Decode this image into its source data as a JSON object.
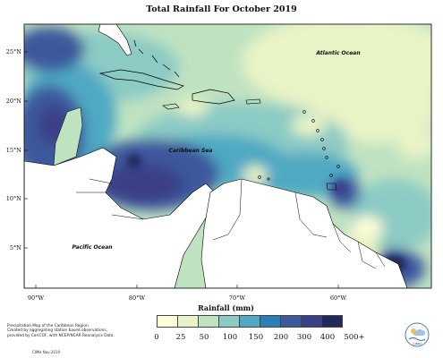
{
  "title": "Total Rainfall For October 2019",
  "map": {
    "ocean_labels": [
      "Atlantic Ocean",
      "Caribbean Sea",
      "Pacific Ocean"
    ],
    "lat_labels": [
      "25°N",
      "20°N",
      "15°N",
      "10°N",
      "5°N"
    ],
    "lon_labels": [
      "90°W",
      "80°W",
      "70°W",
      "60°W"
    ]
  },
  "legend": {
    "title": "Rainfall (mm)",
    "labels": [
      "0",
      "25",
      "50",
      "100",
      "150",
      "200",
      "300",
      "400",
      "500+"
    ],
    "colors": [
      "#fdfdd8",
      "#e8f3c6",
      "#bfe2c1",
      "#8ccbc4",
      "#4fa9c3",
      "#2b7fb6",
      "#3e589d",
      "#3b3f87",
      "#21285c"
    ]
  },
  "credit": {
    "lines": [
      "Precipitation Map of the Caribbean Region.",
      "Created by aggregating station based observations,",
      "provided by CariCOF, with NCEP/NCAR Reanalysis Data."
    ],
    "date": "CIMH Nov-2019"
  },
  "logo": {
    "text": "CIMH"
  }
}
